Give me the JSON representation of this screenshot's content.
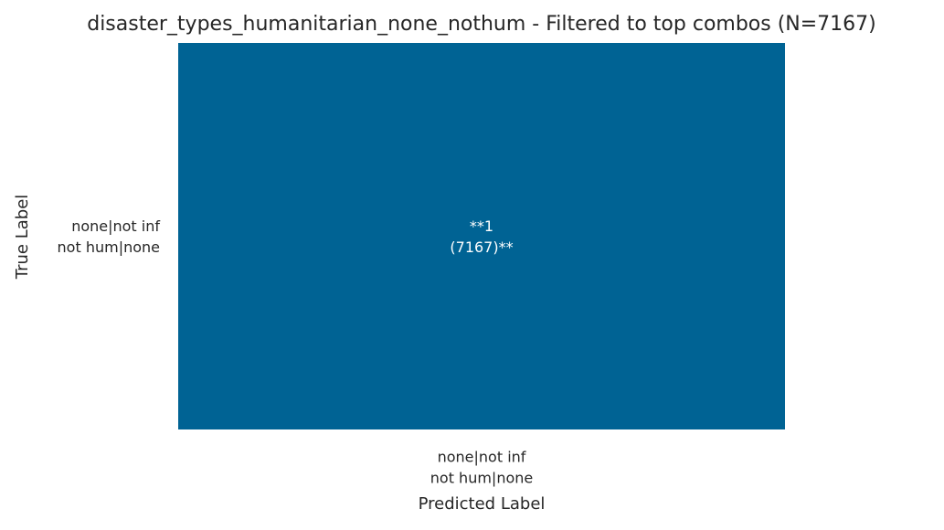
{
  "chart_data": {
    "type": "heatmap",
    "title": "disaster_types_humanitarian_none_nothum - Filtered to top combos (N=7167)",
    "xlabel": "Predicted Label",
    "ylabel": "True Label",
    "x_categories": [
      [
        "none|not inf",
        "not hum|none"
      ]
    ],
    "y_categories": [
      [
        "none|not inf",
        "not hum|none"
      ]
    ],
    "values": [
      [
        1
      ]
    ],
    "counts": [
      [
        7167
      ]
    ],
    "cell_labels": [
      [
        [
          "**1",
          "(7167)**"
        ]
      ]
    ],
    "color_range": [
      0,
      1
    ],
    "cell_color": "#006394",
    "grid": false,
    "legend": "none"
  }
}
